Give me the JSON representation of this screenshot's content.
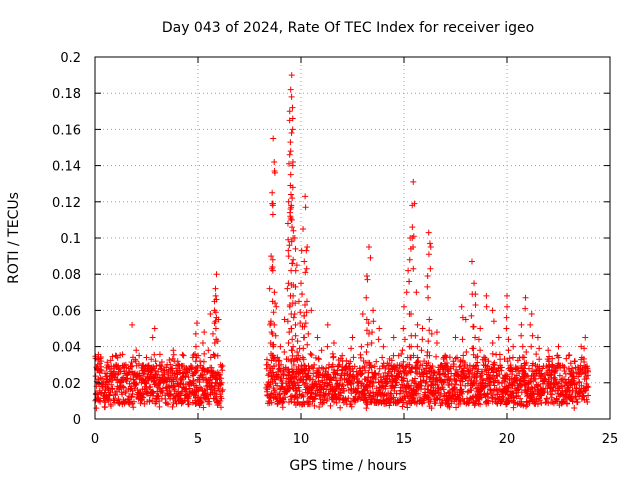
{
  "chart_data": {
    "type": "scatter",
    "title": "Day 043 of 2024, Rate Of TEC Index for receiver igeo",
    "xlabel": "GPS time / hours",
    "ylabel": "ROTI / TECUs",
    "xlim": [
      0,
      25
    ],
    "ylim": [
      0,
      0.2
    ],
    "x_ticks": [
      0,
      5,
      10,
      15,
      20,
      25
    ],
    "x_tick_labels": [
      "0",
      "5",
      "10",
      "15",
      "20",
      "25"
    ],
    "y_ticks": [
      0,
      0.02,
      0.04,
      0.06,
      0.08,
      0.1,
      0.12,
      0.14,
      0.16,
      0.18,
      0.2
    ],
    "y_tick_labels": [
      "0",
      "0.02",
      "0.04",
      "0.06",
      "0.08",
      "0.1",
      "0.12",
      "0.14",
      "0.16",
      "0.18",
      "0.2"
    ],
    "grid": true,
    "marker": "+",
    "color": "#ff0000",
    "data_gap_hours": [
      6.2,
      8.3
    ],
    "series": [
      {
        "name": "ROTI",
        "points": [
          [
            0.1,
            0.028
          ],
          [
            0.3,
            0.032
          ],
          [
            0.5,
            0.018
          ],
          [
            0.8,
            0.025
          ],
          [
            1.0,
            0.035
          ],
          [
            1.2,
            0.02
          ],
          [
            1.5,
            0.03
          ],
          [
            1.8,
            0.052
          ],
          [
            2.0,
            0.038
          ],
          [
            2.3,
            0.022
          ],
          [
            2.5,
            0.034
          ],
          [
            2.8,
            0.045
          ],
          [
            2.9,
            0.05
          ],
          [
            3.2,
            0.028
          ],
          [
            3.5,
            0.03
          ],
          [
            3.8,
            0.038
          ],
          [
            4.0,
            0.025
          ],
          [
            4.3,
            0.035
          ],
          [
            4.6,
            0.028
          ],
          [
            4.9,
            0.04
          ],
          [
            4.95,
            0.053
          ],
          [
            5.1,
            0.032
          ],
          [
            5.3,
            0.048
          ],
          [
            5.5,
            0.038
          ],
          [
            5.6,
            0.058
          ],
          [
            5.8,
            0.065
          ],
          [
            5.85,
            0.072
          ],
          [
            5.9,
            0.08
          ],
          [
            6.0,
            0.055
          ],
          [
            6.1,
            0.03
          ],
          [
            8.4,
            0.03
          ],
          [
            8.5,
            0.052
          ],
          [
            8.55,
            0.09
          ],
          [
            8.6,
            0.125
          ],
          [
            8.65,
            0.155
          ],
          [
            8.7,
            0.142
          ],
          [
            8.8,
            0.062
          ],
          [
            9.0,
            0.04
          ],
          [
            9.2,
            0.055
          ],
          [
            9.4,
            0.12
          ],
          [
            9.45,
            0.165
          ],
          [
            9.5,
            0.182
          ],
          [
            9.55,
            0.19
          ],
          [
            9.6,
            0.14
          ],
          [
            9.7,
            0.1
          ],
          [
            9.8,
            0.085
          ],
          [
            9.9,
            0.065
          ],
          [
            10.0,
            0.075
          ],
          [
            10.1,
            0.105
          ],
          [
            10.2,
            0.123
          ],
          [
            10.3,
            0.095
          ],
          [
            10.5,
            0.06
          ],
          [
            10.8,
            0.045
          ],
          [
            11.0,
            0.038
          ],
          [
            11.3,
            0.052
          ],
          [
            11.6,
            0.042
          ],
          [
            12.0,
            0.035
          ],
          [
            12.5,
            0.045
          ],
          [
            13.0,
            0.058
          ],
          [
            13.2,
            0.079
          ],
          [
            13.3,
            0.095
          ],
          [
            13.5,
            0.06
          ],
          [
            13.8,
            0.05
          ],
          [
            14.0,
            0.04
          ],
          [
            14.5,
            0.045
          ],
          [
            15.0,
            0.062
          ],
          [
            15.2,
            0.082
          ],
          [
            15.3,
            0.1
          ],
          [
            15.4,
            0.118
          ],
          [
            15.45,
            0.131
          ],
          [
            15.6,
            0.07
          ],
          [
            15.9,
            0.05
          ],
          [
            16.2,
            0.103
          ],
          [
            16.3,
            0.095
          ],
          [
            16.6,
            0.048
          ],
          [
            17.0,
            0.035
          ],
          [
            17.5,
            0.045
          ],
          [
            17.8,
            0.062
          ],
          [
            18.0,
            0.055
          ],
          [
            18.3,
            0.087
          ],
          [
            18.4,
            0.075
          ],
          [
            18.7,
            0.05
          ],
          [
            19.0,
            0.068
          ],
          [
            19.3,
            0.06
          ],
          [
            19.6,
            0.045
          ],
          [
            20.0,
            0.068
          ],
          [
            20.3,
            0.04
          ],
          [
            20.7,
            0.052
          ],
          [
            20.9,
            0.067
          ],
          [
            21.2,
            0.058
          ],
          [
            21.5,
            0.045
          ],
          [
            22.0,
            0.038
          ],
          [
            22.5,
            0.04
          ],
          [
            23.0,
            0.035
          ],
          [
            23.3,
            0.032
          ],
          [
            23.6,
            0.04
          ],
          [
            23.8,
            0.045
          ],
          [
            23.9,
            0.028
          ]
        ]
      }
    ]
  }
}
